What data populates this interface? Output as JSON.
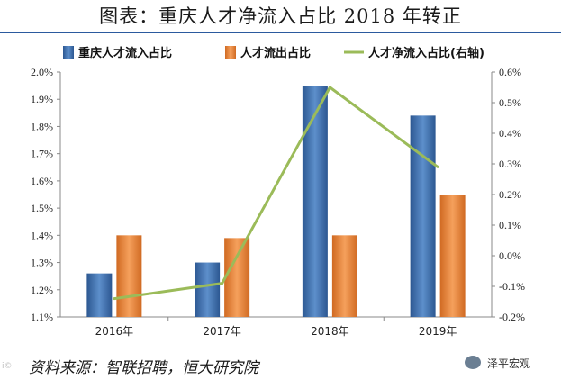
{
  "header": {
    "title": "图表：重庆人才净流入占比 2018 年转正"
  },
  "footer": {
    "source": "资料来源：智联招聘，恒大研究院",
    "watermark": "泽平宏观",
    "watermark_left": "i©"
  },
  "colors": {
    "bar_inflow": "#3a6ba8",
    "bar_outflow": "#e8823a",
    "line": "#9bbb59",
    "axis": "#888888"
  },
  "chart_data": {
    "type": "bar",
    "categories": [
      "2016年",
      "2017年",
      "2018年",
      "2019年"
    ],
    "series": [
      {
        "name": "重庆人才流入占比",
        "type": "bar",
        "axis": "left",
        "values": [
          1.26,
          1.3,
          1.95,
          1.84
        ]
      },
      {
        "name": "人才流出占比",
        "type": "bar",
        "axis": "left",
        "values": [
          1.4,
          1.39,
          1.4,
          1.55
        ]
      },
      {
        "name": "人才净流入占比(右轴)",
        "type": "line",
        "axis": "right",
        "values": [
          -0.14,
          -0.09,
          0.55,
          0.29
        ]
      }
    ],
    "y_left": {
      "range": [
        1.1,
        2.0
      ],
      "ticks": [
        "1.1%",
        "1.2%",
        "1.3%",
        "1.4%",
        "1.5%",
        "1.6%",
        "1.7%",
        "1.8%",
        "1.9%",
        "2.0%"
      ]
    },
    "y_right": {
      "range": [
        -0.2,
        0.6
      ],
      "ticks": [
        "-0.2%",
        "-0.1%",
        "0.0%",
        "0.1%",
        "0.2%",
        "0.3%",
        "0.4%",
        "0.5%",
        "0.6%"
      ]
    },
    "legend_position": "top",
    "grid": false
  }
}
